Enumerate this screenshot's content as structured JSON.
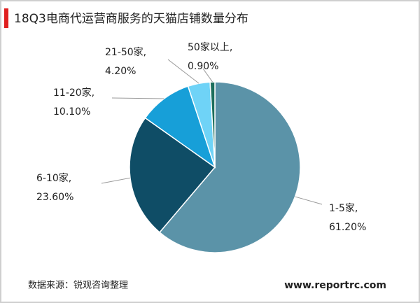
{
  "chart_data": {
    "type": "pie",
    "title": "18Q3电商代运营商服务的天猫店铺数量分布",
    "categories": [
      "1-5家,",
      "6-10家,",
      "11-20家,",
      "21-50家,",
      "50家以上,"
    ],
    "values": [
      61.2,
      23.6,
      10.1,
      4.2,
      0.9
    ],
    "value_labels": [
      "61.20%",
      "23.60%",
      "10.10%",
      "4.20%",
      "0.90%"
    ],
    "colors": [
      "#5b93a8",
      "#0f4d66",
      "#179fd8",
      "#6fd3f7",
      "#1c6e5c"
    ],
    "source": "数据来源：锐观咨询整理",
    "website": "www.reportrc.com"
  }
}
